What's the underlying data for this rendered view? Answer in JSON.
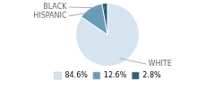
{
  "chart_data": {
    "type": "pie",
    "categories": [
      "WHITE",
      "HISPANIC",
      "BLACK"
    ],
    "values": [
      84.6,
      12.6,
      2.8
    ],
    "value_labels": [
      "84.6%",
      "12.6%",
      "2.8%"
    ],
    "colors": [
      "#d6e4f0",
      "#6b9ab8",
      "#2e5f7a"
    ],
    "legend": "bottom"
  }
}
